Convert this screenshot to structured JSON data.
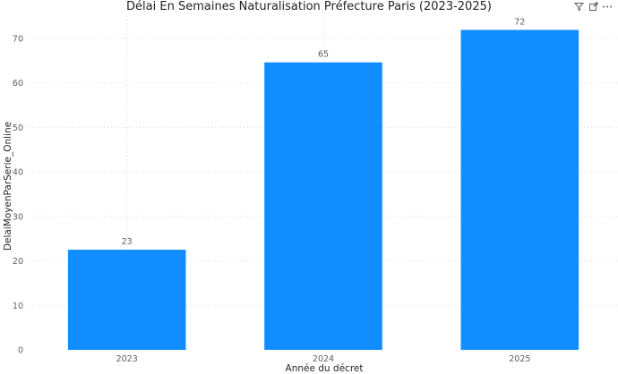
{
  "header": {
    "icons": [
      "filter-icon",
      "focus-mode-icon",
      "more-options-icon"
    ]
  },
  "chart_data": {
    "type": "bar",
    "title": "Délai En Semaines Naturalisation Préfecture Paris (2023-2025)",
    "xlabel": "Année du décret",
    "ylabel": "DelaiMoyenParSerie_Online",
    "categories": [
      "2023",
      "2024",
      "2025"
    ],
    "values": [
      22.5,
      64.6,
      71.9
    ],
    "data_labels": [
      "23",
      "65",
      "72"
    ],
    "ylim": [
      0,
      75
    ],
    "yticks": [
      0,
      10,
      20,
      30,
      40,
      50,
      60,
      70
    ],
    "grid": true,
    "legend": "none",
    "bar_color": "#118DFF",
    "grid_color": "#d9d9d9",
    "text_color": "#605e5c"
  }
}
